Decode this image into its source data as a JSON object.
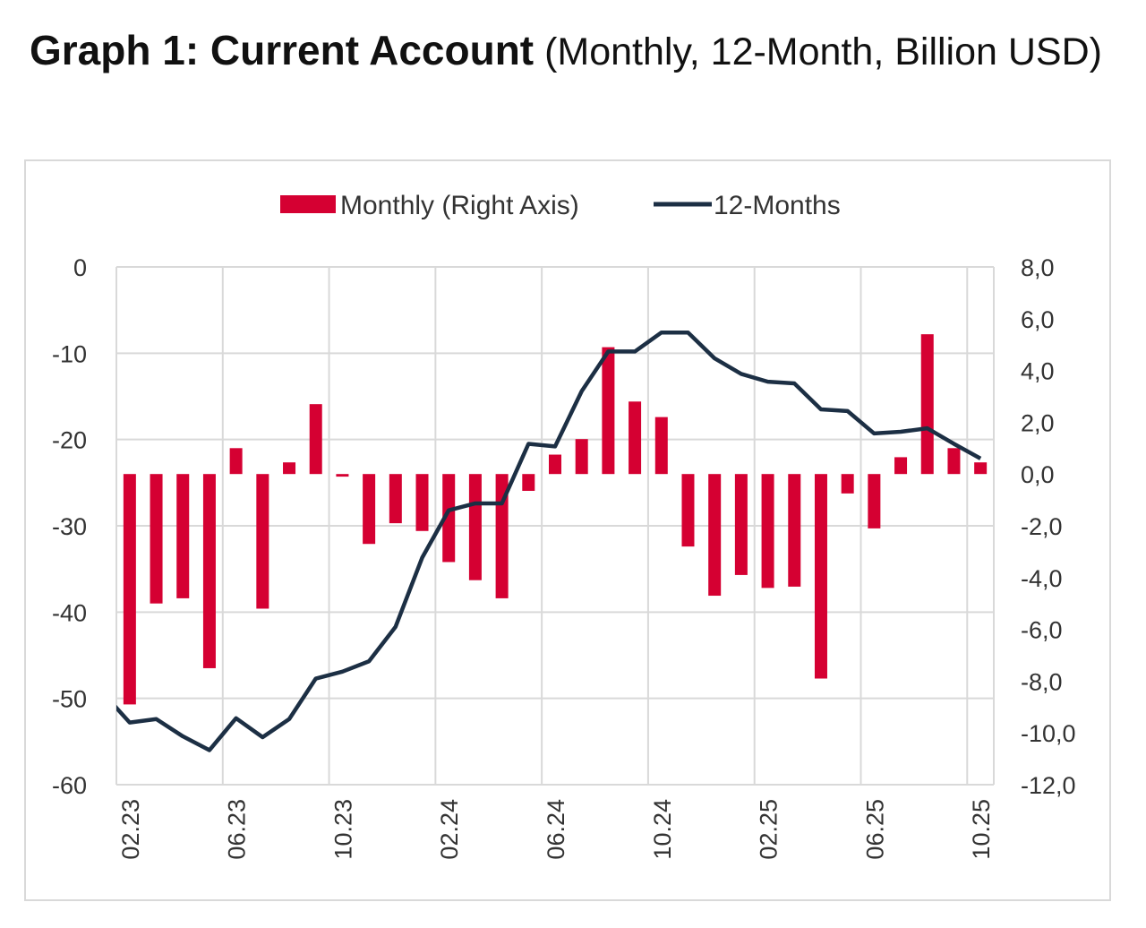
{
  "title": {
    "bold": "Graph 1: Current Account",
    "rest": " (Monthly, 12-Month, Billion USD)"
  },
  "colors": {
    "bar": "#d50032",
    "line": "#1c2f44",
    "grid": "#d9d9d9"
  },
  "chart_data": {
    "type": "bar+line",
    "title": "Graph 1: Current Account (Monthly, 12-Month, Billion USD)",
    "legend": {
      "position": "top",
      "entries": [
        "Monthly (Right Axis)",
        "12-Months"
      ]
    },
    "categories": [
      "02.23",
      "03.23",
      "04.23",
      "05.23",
      "06.23",
      "07.23",
      "08.23",
      "09.23",
      "10.23",
      "11.23",
      "12.23",
      "01.24",
      "02.24",
      "03.24",
      "04.24",
      "05.24",
      "06.24",
      "07.24",
      "08.24",
      "09.24",
      "10.24",
      "11.24",
      "12.24",
      "01.25",
      "02.25",
      "03.25",
      "04.25",
      "05.25",
      "06.25",
      "07.25",
      "08.25",
      "09.25",
      "10.25"
    ],
    "x_tick_labels": [
      "02.23",
      "06.23",
      "10.23",
      "02.24",
      "06.24",
      "10.24",
      "02.25",
      "06.25",
      "10.25"
    ],
    "left_axis": {
      "range": [
        -60,
        0
      ],
      "ticks": [
        "0",
        "-10",
        "-20",
        "-30",
        "-40",
        "-50",
        "-60"
      ]
    },
    "right_axis": {
      "range": [
        -12,
        8
      ],
      "ticks": [
        "8,0",
        "6,0",
        "4,0",
        "2,0",
        "0,0",
        "-2,0",
        "-4,0",
        "-6,0",
        "-8,0",
        "-10,0",
        "-12,0"
      ]
    },
    "grid": true,
    "series": [
      {
        "name": "Monthly (Right Axis)",
        "type": "bar",
        "axis": "right",
        "values": [
          -8.9,
          -5.0,
          -4.8,
          -7.5,
          1.0,
          -5.2,
          0.45,
          2.7,
          -0.1,
          -2.7,
          -1.9,
          -2.2,
          -3.4,
          -4.1,
          -4.8,
          -0.65,
          0.75,
          1.35,
          4.9,
          2.8,
          2.2,
          -2.8,
          -4.7,
          -3.9,
          -4.4,
          -4.35,
          -7.9,
          -0.75,
          -2.1,
          0.65,
          5.4,
          1.0,
          0.45
        ]
      },
      {
        "name": "12-Months",
        "type": "line",
        "axis": "left",
        "values": [
          -52.8,
          -52.4,
          -54.4,
          -56.0,
          -52.3,
          -54.5,
          -52.4,
          -47.7,
          -46.9,
          -45.7,
          -41.7,
          -33.7,
          -28.2,
          -27.4,
          -27.4,
          -20.5,
          -20.8,
          -14.4,
          -9.8,
          -9.8,
          -7.6,
          -7.6,
          -10.6,
          -12.4,
          -13.3,
          -13.5,
          -16.5,
          -16.7,
          -19.3,
          -19.1,
          -18.7,
          -20.5,
          -22.2
        ],
        "prior_value_01.23": -49.4
      }
    ]
  }
}
